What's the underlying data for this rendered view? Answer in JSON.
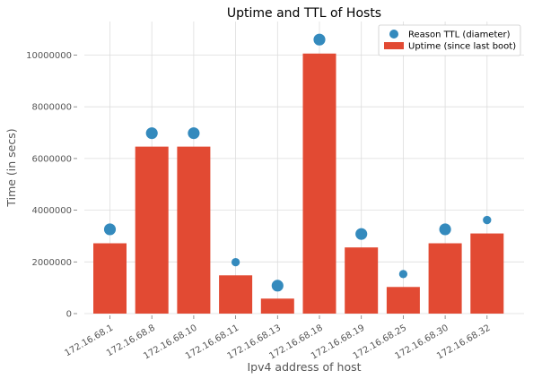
{
  "chart_data": {
    "type": "bar",
    "title": "Uptime and TTL of Hosts",
    "xlabel": "Ipv4 address of host",
    "ylabel": "Time (in secs)",
    "ylim": [
      0,
      11300000
    ],
    "yticks": [
      0,
      2000000,
      4000000,
      6000000,
      8000000,
      10000000
    ],
    "ytick_labels": [
      "0",
      "2000000",
      "4000000",
      "6000000",
      "8000000",
      "10000000"
    ],
    "grid": true,
    "legend_position": "top-right",
    "categories": [
      "172.16.68.1",
      "172.16.68.8",
      "172.16.68.10",
      "172.16.68.11",
      "172.16.68.13",
      "172.16.68.18",
      "172.16.68.19",
      "172.16.68.25",
      "172.16.68.30",
      "172.16.68.32"
    ],
    "series": [
      {
        "name": "Uptime (since last boot)",
        "type": "bar",
        "color": "#E24A33",
        "values": [
          2720000,
          6460000,
          6460000,
          1480000,
          580000,
          10060000,
          2560000,
          1030000,
          2720000,
          3100000
        ]
      },
      {
        "name": "Reason TTL (diameter)",
        "type": "scatter",
        "color": "#348ABD",
        "values": [
          3260000,
          6980000,
          6980000,
          1990000,
          1080000,
          10600000,
          3080000,
          1530000,
          3260000,
          3620000
        ],
        "marker_sizes": [
          64,
          64,
          64,
          32,
          64,
          64,
          64,
          32,
          64,
          32
        ]
      }
    ]
  }
}
